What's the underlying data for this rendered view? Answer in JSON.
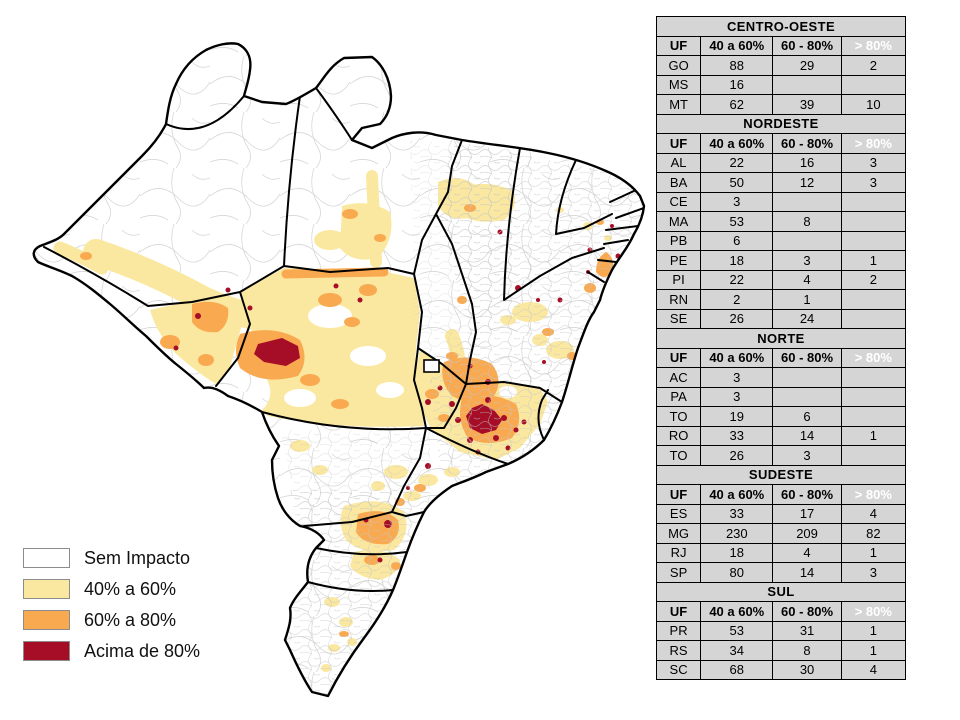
{
  "palette": {
    "no_impact": "#FFFFFF",
    "low": "#FBE8A0",
    "mid": "#F9A950",
    "high": "#A60D26",
    "table_gray": "#D5D5D5",
    "table_gray_dark": "#C9C9C9",
    "muni_line": "#C6C6C6",
    "border": "#000000"
  },
  "legend": {
    "items": [
      {
        "label": "Sem Impacto",
        "color": "#FFFFFF"
      },
      {
        "label": "40% a 60%",
        "color": "#FBE8A0"
      },
      {
        "label": "60% a 80%",
        "color": "#F9A950"
      },
      {
        "label": "Acima de 80%",
        "color": "#A60D26"
      }
    ]
  },
  "table": {
    "columns": [
      "UF",
      "40 a 60%",
      "60 - 80%",
      "> 80%"
    ],
    "sections": [
      {
        "region": "CENTRO-OESTE",
        "rows": [
          [
            "GO",
            "88",
            "29",
            "2"
          ],
          [
            "MS",
            "16",
            "",
            ""
          ],
          [
            "MT",
            "62",
            "39",
            "10"
          ]
        ]
      },
      {
        "region": "NORDESTE",
        "rows": [
          [
            "AL",
            "22",
            "16",
            "3"
          ],
          [
            "BA",
            "50",
            "12",
            "3"
          ],
          [
            "CE",
            "3",
            "",
            ""
          ],
          [
            "MA",
            "53",
            "8",
            ""
          ],
          [
            "PB",
            "6",
            "",
            ""
          ],
          [
            "PE",
            "18",
            "3",
            "1"
          ],
          [
            "PI",
            "22",
            "4",
            "2"
          ],
          [
            "RN",
            "2",
            "1",
            ""
          ],
          [
            "SE",
            "26",
            "24",
            ""
          ]
        ]
      },
      {
        "region": "NORTE",
        "rows": [
          [
            "AC",
            "3",
            "",
            ""
          ],
          [
            "PA",
            "3",
            "",
            ""
          ],
          [
            "TO",
            "19",
            "6",
            ""
          ],
          [
            "RO",
            "33",
            "14",
            "1"
          ],
          [
            "TO",
            "26",
            "3",
            ""
          ]
        ]
      },
      {
        "region": "SUDESTE",
        "rows": [
          [
            "ES",
            "33",
            "17",
            "4"
          ],
          [
            "MG",
            "230",
            "209",
            "82"
          ],
          [
            "RJ",
            "18",
            "4",
            "1"
          ],
          [
            "SP",
            "80",
            "14",
            "3"
          ]
        ]
      },
      {
        "region": "SUL",
        "rows": [
          [
            "PR",
            "53",
            "31",
            "1"
          ],
          [
            "RS",
            "34",
            "8",
            "1"
          ],
          [
            "SC",
            "68",
            "30",
            "4"
          ]
        ]
      }
    ]
  }
}
